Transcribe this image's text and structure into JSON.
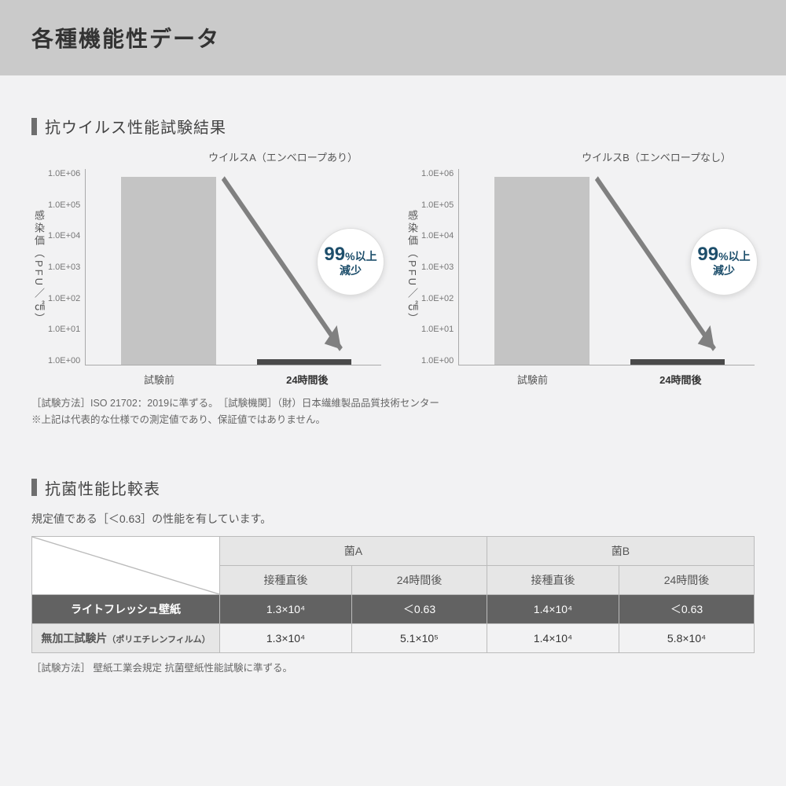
{
  "page": {
    "title": "各種機能性データ",
    "background_color": "#f2f2f3",
    "header_bg": "#cacaca"
  },
  "section1": {
    "title": "抗ウイルス性能試験結果",
    "ylabel": "感染価（PFU／㎠）",
    "y_ticks": [
      "1.0E+06",
      "1.0E+05",
      "1.0E+04",
      "1.0E+03",
      "1.0E+02",
      "1.0E+01",
      "1.0E+00"
    ],
    "y_scale": "log",
    "ylim": [
      1,
      1000000
    ],
    "x_labels": [
      "試験前",
      "24時間後"
    ],
    "bar1_color": "#c4c4c4",
    "bar2_color": "#4a4a4a",
    "axis_color": "#aaaaaa",
    "arrow_color": "#808080",
    "badge_bg": "#ffffff",
    "badge_text_color": "#1d4e6b",
    "charts": [
      {
        "title": "ウイルスA（エンベロープあり）",
        "bar1_value": 600000,
        "bar2_value": 1.5,
        "bar1_height_pct": 96,
        "bar2_height_pct": 3,
        "badge_top_text": "99",
        "badge_top_suffix": "%以上",
        "badge_bottom": "減少"
      },
      {
        "title": "ウイルスB（エンベロープなし）",
        "bar1_value": 600000,
        "bar2_value": 1.5,
        "bar1_height_pct": 96,
        "bar2_height_pct": 3,
        "badge_top_text": "99",
        "badge_top_suffix": "%以上",
        "badge_bottom": "減少"
      }
    ],
    "footnote_line1": "［試験方法］ISO 21702：2019に準ずる。　［試験機関］（財）日本繊維製品品質技術センター",
    "footnote_line2": "※上記は代表的な仕様での測定値であり、保証値ではありません。"
  },
  "section2": {
    "title": "抗菌性能比較表",
    "subtext": "規定値である［＜0.63］の性能を有しています。",
    "header_bg": "#e6e6e6",
    "dark_row_bg": "#626262",
    "border_color": "#bbbbbb",
    "columns_group": [
      "菌A",
      "菌B"
    ],
    "columns_sub": [
      "接種直後",
      "24時間後",
      "接種直後",
      "24時間後"
    ],
    "rows": [
      {
        "name": "ライトフレッシュ壁紙",
        "name_sub": "",
        "cells": [
          "1.3×10⁴",
          "＜0.63",
          "1.4×10⁴",
          "＜0.63"
        ],
        "dark": true
      },
      {
        "name": "無加工試験片",
        "name_sub": "（ポリエチレンフィルム）",
        "cells": [
          "1.3×10⁴",
          "5.1×10⁵",
          "1.4×10⁴",
          "5.8×10⁴"
        ],
        "dark": false
      }
    ],
    "footnote": "［試験方法］ 壁紙工業会規定 抗菌壁紙性能試験に準ずる。"
  }
}
